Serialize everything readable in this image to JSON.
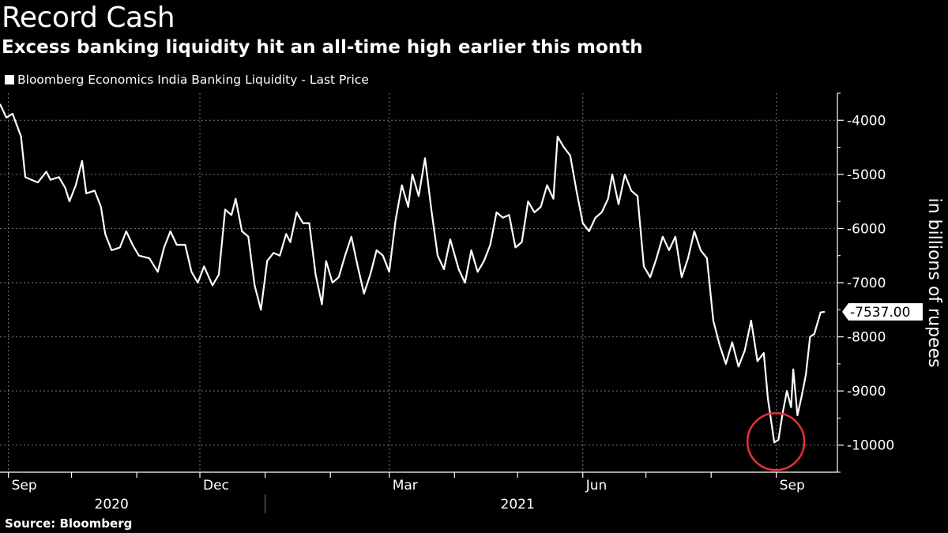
{
  "title": "Record Cash",
  "subtitle": "Excess banking liquidity hit an all-time high earlier this month",
  "legend": "Bloomberg Economics India Banking Liquidity - Last Price",
  "source": "Source: Bloomberg",
  "last_value_label": "-7537.00",
  "colors": {
    "background": "#000000",
    "line": "#ffffff",
    "grid": "#7a7a7a",
    "highlight_circle": "#e8303a"
  },
  "chart_data": {
    "type": "line",
    "title": "Record Cash",
    "subtitle": "Excess banking liquidity hit an all-time high earlier this month",
    "ylabel": "in billions of rupees",
    "y_axis_side": "right",
    "ylim": [
      -10500,
      -3500
    ],
    "y_ticks": [
      -4000,
      -5000,
      -6000,
      -7000,
      -8000,
      -9000,
      -10000
    ],
    "y_tick_labels": [
      "-4000",
      "-5000",
      "-6000",
      "-7000",
      "-8000",
      "-9000",
      "-10000"
    ],
    "x_ticks": [
      {
        "label": "Sep",
        "date": "2020-09-01"
      },
      {
        "label": "Dec",
        "date": "2020-12-01"
      },
      {
        "label": "Mar",
        "date": "2021-03-01"
      },
      {
        "label": "Jun",
        "date": "2021-06-01"
      },
      {
        "label": "Sep",
        "date": "2021-09-01"
      }
    ],
    "years": [
      {
        "label": "2020"
      },
      {
        "label": "2021"
      }
    ],
    "grid": true,
    "legend_position": "top-left",
    "annotation": "circle around record low in late August 2021",
    "series": [
      {
        "name": "Bloomberg Economics India Banking Liquidity - Last Price",
        "last_value": -7537.0,
        "points": [
          [
            "2020-08-28",
            -3700
          ],
          [
            "2020-08-31",
            -3950
          ],
          [
            "2020-09-03",
            -3880
          ],
          [
            "2020-09-07",
            -4300
          ],
          [
            "2020-09-09",
            -5050
          ],
          [
            "2020-09-12",
            -5100
          ],
          [
            "2020-09-15",
            -5150
          ],
          [
            "2020-09-19",
            -4950
          ],
          [
            "2020-09-21",
            -5100
          ],
          [
            "2020-09-25",
            -5050
          ],
          [
            "2020-09-28",
            -5250
          ],
          [
            "2020-09-30",
            -5500
          ],
          [
            "2020-10-03",
            -5200
          ],
          [
            "2020-10-06",
            -4750
          ],
          [
            "2020-10-08",
            -5350
          ],
          [
            "2020-10-12",
            -5300
          ],
          [
            "2020-10-15",
            -5600
          ],
          [
            "2020-10-17",
            -6100
          ],
          [
            "2020-10-20",
            -6400
          ],
          [
            "2020-10-24",
            -6350
          ],
          [
            "2020-10-27",
            -6050
          ],
          [
            "2020-10-30",
            -6300
          ],
          [
            "2020-11-02",
            -6500
          ],
          [
            "2020-11-07",
            -6550
          ],
          [
            "2020-11-11",
            -6800
          ],
          [
            "2020-11-14",
            -6350
          ],
          [
            "2020-11-17",
            -6050
          ],
          [
            "2020-11-20",
            -6300
          ],
          [
            "2020-11-24",
            -6300
          ],
          [
            "2020-11-27",
            -6800
          ],
          [
            "2020-11-30",
            -7000
          ],
          [
            "2020-12-03",
            -6700
          ],
          [
            "2020-12-07",
            -7050
          ],
          [
            "2020-12-10",
            -6850
          ],
          [
            "2020-12-13",
            -5650
          ],
          [
            "2020-12-16",
            -5750
          ],
          [
            "2020-12-18",
            -5450
          ],
          [
            "2020-12-21",
            -6050
          ],
          [
            "2020-12-24",
            -6150
          ],
          [
            "2020-12-27",
            -7050
          ],
          [
            "2020-12-30",
            -7500
          ],
          [
            "2021-01-02",
            -6600
          ],
          [
            "2021-01-05",
            -6450
          ],
          [
            "2021-01-08",
            -6500
          ],
          [
            "2021-01-11",
            -6100
          ],
          [
            "2021-01-13",
            -6250
          ],
          [
            "2021-01-16",
            -5700
          ],
          [
            "2021-01-19",
            -5900
          ],
          [
            "2021-01-22",
            -5900
          ],
          [
            "2021-01-25",
            -6850
          ],
          [
            "2021-01-28",
            -7400
          ],
          [
            "2021-01-30",
            -6600
          ],
          [
            "2021-02-02",
            -7000
          ],
          [
            "2021-02-05",
            -6900
          ],
          [
            "2021-02-08",
            -6500
          ],
          [
            "2021-02-11",
            -6150
          ],
          [
            "2021-02-14",
            -6700
          ],
          [
            "2021-02-17",
            -7200
          ],
          [
            "2021-02-20",
            -6850
          ],
          [
            "2021-02-23",
            -6400
          ],
          [
            "2021-02-26",
            -6500
          ],
          [
            "2021-03-01",
            -6800
          ],
          [
            "2021-03-04",
            -5850
          ],
          [
            "2021-03-07",
            -5200
          ],
          [
            "2021-03-10",
            -5600
          ],
          [
            "2021-03-12",
            -5000
          ],
          [
            "2021-03-15",
            -5400
          ],
          [
            "2021-03-18",
            -4700
          ],
          [
            "2021-03-21",
            -5650
          ],
          [
            "2021-03-24",
            -6500
          ],
          [
            "2021-03-27",
            -6750
          ],
          [
            "2021-03-30",
            -6200
          ],
          [
            "2021-04-03",
            -6750
          ],
          [
            "2021-04-06",
            -7000
          ],
          [
            "2021-04-09",
            -6400
          ],
          [
            "2021-04-12",
            -6800
          ],
          [
            "2021-04-15",
            -6600
          ],
          [
            "2021-04-18",
            -6300
          ],
          [
            "2021-04-21",
            -5700
          ],
          [
            "2021-04-24",
            -5800
          ],
          [
            "2021-04-27",
            -5750
          ],
          [
            "2021-04-30",
            -6350
          ],
          [
            "2021-05-03",
            -6250
          ],
          [
            "2021-05-06",
            -5500
          ],
          [
            "2021-05-09",
            -5700
          ],
          [
            "2021-05-12",
            -5600
          ],
          [
            "2021-05-15",
            -5200
          ],
          [
            "2021-05-18",
            -5450
          ],
          [
            "2021-05-20",
            -4300
          ],
          [
            "2021-05-23",
            -4500
          ],
          [
            "2021-05-26",
            -4650
          ],
          [
            "2021-05-29",
            -5300
          ],
          [
            "2021-06-01",
            -5900
          ],
          [
            "2021-06-04",
            -6050
          ],
          [
            "2021-06-07",
            -5800
          ],
          [
            "2021-06-10",
            -5700
          ],
          [
            "2021-06-13",
            -5450
          ],
          [
            "2021-06-15",
            -5000
          ],
          [
            "2021-06-18",
            -5550
          ],
          [
            "2021-06-21",
            -5000
          ],
          [
            "2021-06-24",
            -5300
          ],
          [
            "2021-06-27",
            -5400
          ],
          [
            "2021-06-30",
            -6700
          ],
          [
            "2021-07-03",
            -6900
          ],
          [
            "2021-07-06",
            -6550
          ],
          [
            "2021-07-09",
            -6150
          ],
          [
            "2021-07-12",
            -6400
          ],
          [
            "2021-07-15",
            -6150
          ],
          [
            "2021-07-18",
            -6900
          ],
          [
            "2021-07-21",
            -6550
          ],
          [
            "2021-07-24",
            -6050
          ],
          [
            "2021-07-27",
            -6400
          ],
          [
            "2021-07-30",
            -6550
          ],
          [
            "2021-08-02",
            -7700
          ],
          [
            "2021-08-05",
            -8150
          ],
          [
            "2021-08-08",
            -8500
          ],
          [
            "2021-08-11",
            -8100
          ],
          [
            "2021-08-14",
            -8550
          ],
          [
            "2021-08-17",
            -8250
          ],
          [
            "2021-08-20",
            -7700
          ],
          [
            "2021-08-23",
            -8450
          ],
          [
            "2021-08-26",
            -8300
          ],
          [
            "2021-08-28",
            -9150
          ],
          [
            "2021-08-31",
            -9950
          ],
          [
            "2021-09-02",
            -9900
          ],
          [
            "2021-09-04",
            -9400
          ],
          [
            "2021-09-06",
            -9000
          ],
          [
            "2021-09-08",
            -9300
          ],
          [
            "2021-09-09",
            -8600
          ],
          [
            "2021-09-11",
            -9450
          ],
          [
            "2021-09-13",
            -9100
          ],
          [
            "2021-09-15",
            -8700
          ],
          [
            "2021-09-17",
            -8000
          ],
          [
            "2021-09-19",
            -7950
          ],
          [
            "2021-09-22",
            -7550
          ],
          [
            "2021-09-24",
            -7537
          ]
        ]
      }
    ]
  }
}
